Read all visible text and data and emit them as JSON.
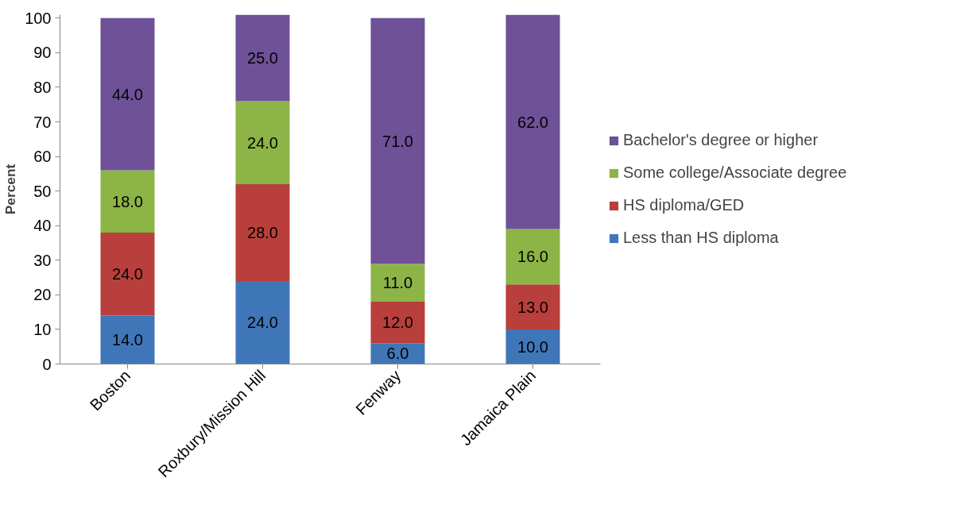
{
  "chart_data": {
    "type": "bar",
    "stacked": true,
    "ylabel": "Percent",
    "categories": [
      "Boston",
      "Roxbury/Mission Hill",
      "Fenway",
      "Jamaica Plain"
    ],
    "ylim": [
      0,
      101
    ],
    "yticks": [
      0,
      10,
      20,
      30,
      40,
      50,
      60,
      70,
      80,
      90,
      100
    ],
    "grid": false,
    "legend": "right",
    "series": [
      {
        "name": "Less than HS diploma",
        "color": "#3f76b8",
        "values": [
          14,
          24,
          6,
          10
        ],
        "value_labels": [
          "14.0",
          "24.0",
          "6.0",
          "10.0"
        ]
      },
      {
        "name": "HS diploma/GED",
        "color": "#b93f3c",
        "values": [
          24,
          28,
          12,
          13
        ],
        "value_labels": [
          "24.0",
          "28.0",
          "12.0",
          "13.0"
        ]
      },
      {
        "name": "Some college/Associate degree",
        "color": "#8db446",
        "values": [
          18,
          24,
          11,
          16
        ],
        "value_labels": [
          "18.0",
          "24.0",
          "11.0",
          "16.0"
        ]
      },
      {
        "name": "Bachelor's degree or higher",
        "color": "#6e5197",
        "values": [
          44,
          25,
          71,
          62
        ],
        "value_labels": [
          "44.0",
          "25.0",
          "71.0",
          "62.0"
        ]
      }
    ]
  }
}
